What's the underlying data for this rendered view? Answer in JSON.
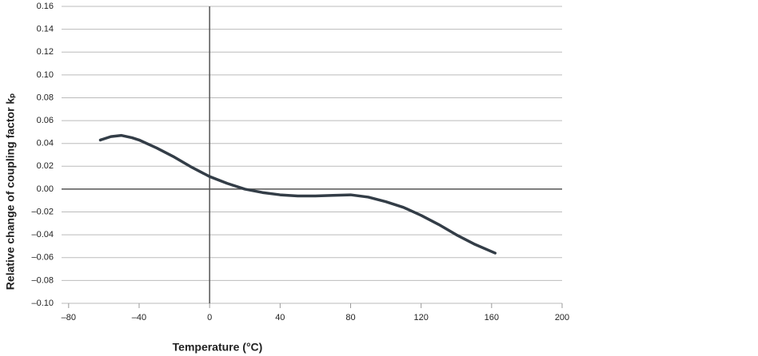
{
  "chart_data": {
    "type": "line",
    "xlabel": "Temperature (°C)",
    "ylabel": "Relative change of coupling factor kₚ",
    "x": [
      -62,
      -56,
      -50,
      -44,
      -40,
      -30,
      -20,
      -10,
      0,
      10,
      20,
      30,
      40,
      50,
      60,
      70,
      80,
      90,
      100,
      110,
      120,
      130,
      140,
      150,
      162
    ],
    "series": [
      {
        "name": "Relative change",
        "color": "#333d47",
        "values": [
          0.043,
          0.046,
          0.047,
          0.045,
          0.043,
          0.036,
          0.028,
          0.019,
          0.011,
          0.005,
          0.0,
          -0.003,
          -0.005,
          -0.006,
          -0.006,
          -0.0055,
          -0.005,
          -0.007,
          -0.011,
          -0.016,
          -0.023,
          -0.031,
          -0.04,
          -0.048,
          -0.056
        ]
      }
    ],
    "xlim": [
      -84,
      200
    ],
    "xticks": [
      {
        "value": -80,
        "label": "–80"
      },
      {
        "value": -40,
        "label": "–40"
      },
      0,
      40,
      80,
      120,
      160,
      200
    ],
    "ylim": [
      -0.1,
      0.16
    ],
    "yticks": [
      {
        "value": -0.1,
        "label": "–0.10"
      },
      {
        "value": -0.08,
        "label": "–0.08"
      },
      {
        "value": -0.06,
        "label": "–0.06"
      },
      {
        "value": -0.04,
        "label": "–0.04"
      },
      {
        "value": -0.02,
        "label": "–0.02"
      },
      {
        "value": 0,
        "label": "0.00"
      },
      0.02,
      0.04,
      0.06,
      0.08,
      {
        "value": 0.1,
        "label": "0.10"
      },
      0.12,
      0.14,
      0.16
    ],
    "grid": true
  }
}
